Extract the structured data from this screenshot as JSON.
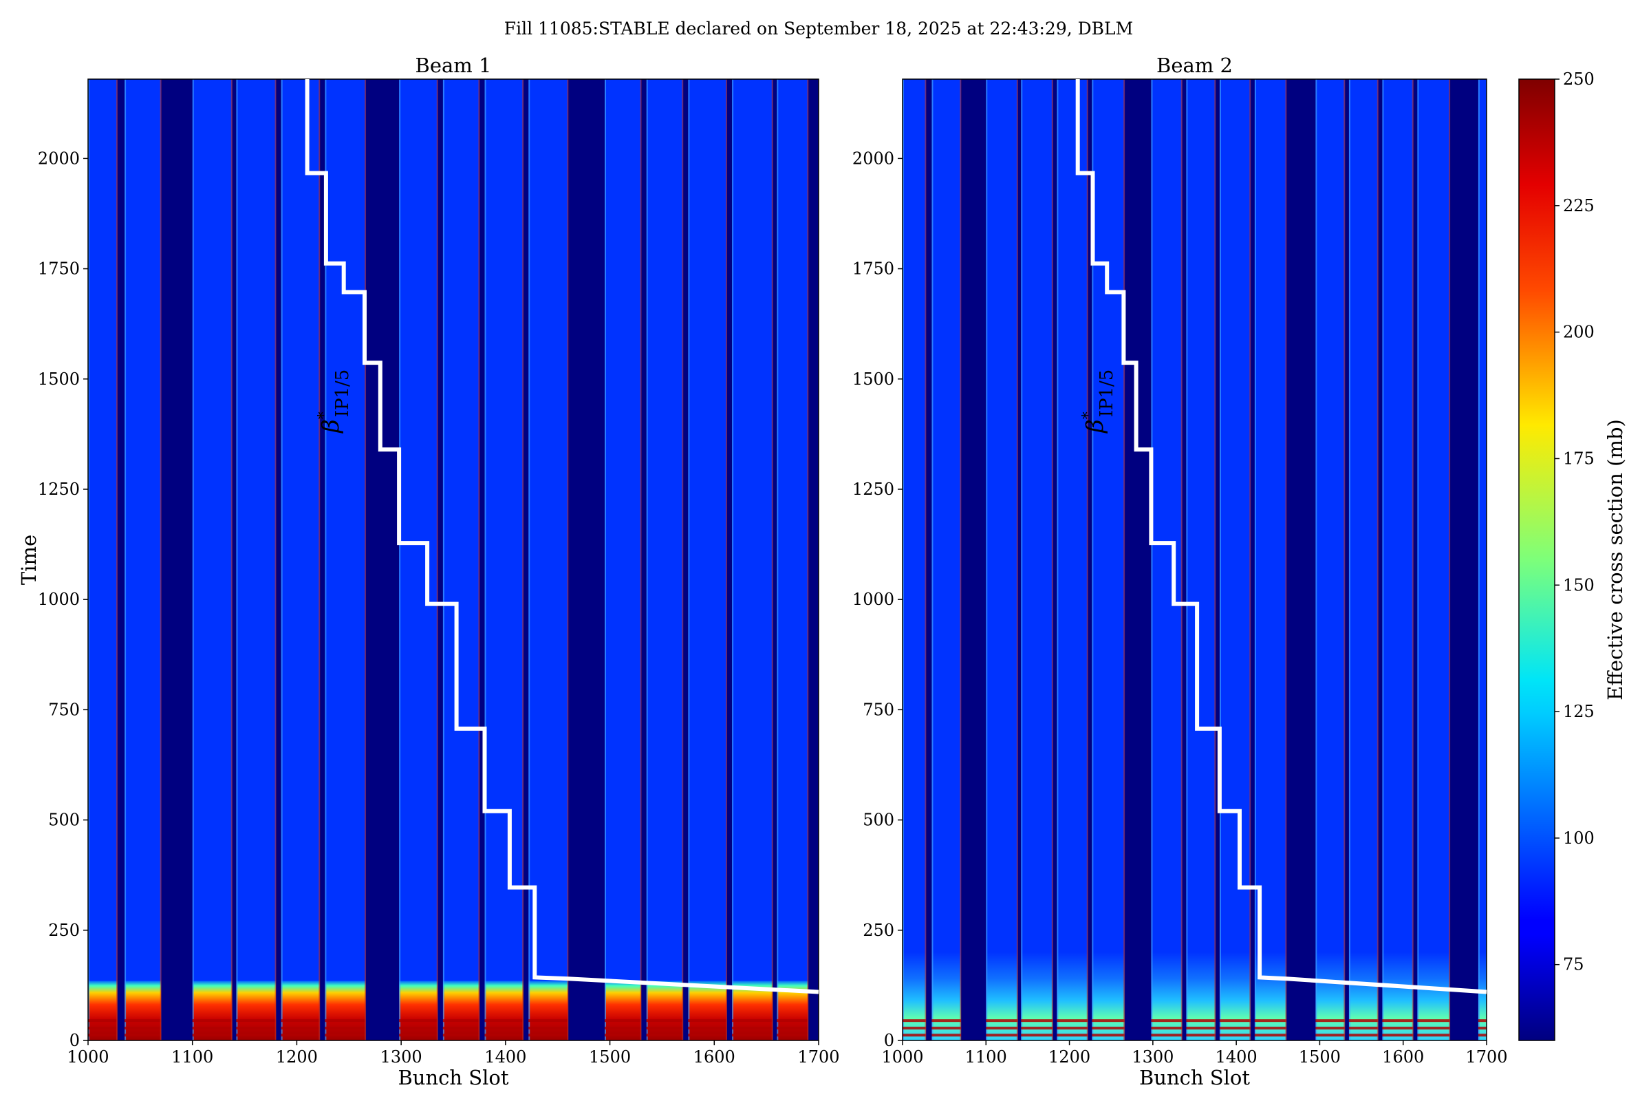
{
  "suptitle": "Fill 11085:STABLE declared on September 18, 2025 at 22:43:29, DBLM",
  "chart_data": [
    {
      "type": "heatmap",
      "title": "Beam 1",
      "xlabel": "Bunch Slot",
      "ylabel": "Time",
      "xlim": [
        1000,
        1700
      ],
      "ylim": [
        0,
        2180
      ],
      "xticks": [
        1000,
        1100,
        1200,
        1300,
        1400,
        1500,
        1600,
        1700
      ],
      "yticks": [
        0,
        250,
        500,
        750,
        1000,
        1250,
        1500,
        1750,
        2000
      ],
      "empty_slot_ranges": [
        [
          1028,
          1035
        ],
        [
          1070,
          1100
        ],
        [
          1138,
          1142
        ],
        [
          1180,
          1185
        ],
        [
          1222,
          1227
        ],
        [
          1266,
          1298
        ],
        [
          1335,
          1340
        ],
        [
          1375,
          1380
        ],
        [
          1417,
          1422
        ],
        [
          1460,
          1495
        ],
        [
          1530,
          1535
        ],
        [
          1570,
          1575
        ],
        [
          1612,
          1617
        ],
        [
          1656,
          1660
        ],
        [
          1690,
          1700
        ]
      ],
      "high_loss_region_time_max": 135,
      "annotation": {
        "text": "β",
        "superscript": "*",
        "subscript": "IP1/5"
      },
      "beta_star_staircase": [
        [
          1210,
          2180
        ],
        [
          1210,
          1967
        ],
        [
          1228,
          1967
        ],
        [
          1228,
          1762
        ],
        [
          1245,
          1762
        ],
        [
          1245,
          1697
        ],
        [
          1265,
          1697
        ],
        [
          1265,
          1537
        ],
        [
          1280,
          1537
        ],
        [
          1280,
          1340
        ],
        [
          1298,
          1340
        ],
        [
          1298,
          1128
        ],
        [
          1325,
          1128
        ],
        [
          1325,
          990
        ],
        [
          1353,
          990
        ],
        [
          1353,
          707
        ],
        [
          1380,
          707
        ],
        [
          1380,
          520
        ],
        [
          1404,
          520
        ],
        [
          1404,
          347
        ],
        [
          1428,
          347
        ],
        [
          1428,
          143
        ],
        [
          1460,
          140
        ],
        [
          1700,
          110
        ]
      ]
    },
    {
      "type": "heatmap",
      "title": "Beam 2",
      "xlabel": "Bunch Slot",
      "ylabel": "",
      "xlim": [
        1000,
        1700
      ],
      "ylim": [
        0,
        2180
      ],
      "xticks": [
        1000,
        1100,
        1200,
        1300,
        1400,
        1500,
        1600,
        1700
      ],
      "yticks": [
        0,
        250,
        500,
        750,
        1000,
        1250,
        1500,
        1750,
        2000
      ],
      "empty_slot_ranges": [
        [
          1028,
          1035
        ],
        [
          1070,
          1100
        ],
        [
          1138,
          1142
        ],
        [
          1180,
          1185
        ],
        [
          1222,
          1227
        ],
        [
          1266,
          1298
        ],
        [
          1335,
          1340
        ],
        [
          1375,
          1380
        ],
        [
          1417,
          1422
        ],
        [
          1460,
          1495
        ],
        [
          1530,
          1535
        ],
        [
          1570,
          1575
        ],
        [
          1612,
          1617
        ],
        [
          1656,
          1690
        ]
      ],
      "high_loss_region_time_max": 200,
      "annotation": {
        "text": "β",
        "superscript": "*",
        "subscript": "IP1/5"
      },
      "beta_star_staircase": [
        [
          1210,
          2180
        ],
        [
          1210,
          1967
        ],
        [
          1228,
          1967
        ],
        [
          1228,
          1762
        ],
        [
          1245,
          1762
        ],
        [
          1245,
          1697
        ],
        [
          1265,
          1697
        ],
        [
          1265,
          1537
        ],
        [
          1280,
          1537
        ],
        [
          1280,
          1340
        ],
        [
          1298,
          1340
        ],
        [
          1298,
          1128
        ],
        [
          1325,
          1128
        ],
        [
          1325,
          990
        ],
        [
          1353,
          990
        ],
        [
          1353,
          707
        ],
        [
          1380,
          707
        ],
        [
          1380,
          520
        ],
        [
          1404,
          520
        ],
        [
          1404,
          347
        ],
        [
          1428,
          347
        ],
        [
          1428,
          143
        ],
        [
          1460,
          140
        ],
        [
          1700,
          110
        ]
      ]
    }
  ],
  "colorbar": {
    "label": "Effective cross section (mb)",
    "range": [
      60,
      250
    ],
    "ticks": [
      75,
      100,
      125,
      150,
      175,
      200,
      225,
      250
    ],
    "colormap": "jet"
  },
  "colors": {
    "background_fill": "#0033ff",
    "empty_slot": "#000080",
    "line": "#ffffff"
  }
}
